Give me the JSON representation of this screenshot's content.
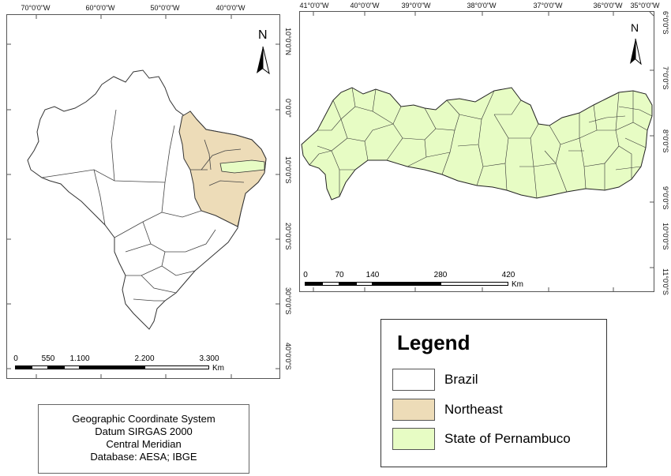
{
  "left_map": {
    "top_ticks": [
      "70°0'0\"W",
      "60°0'0\"W",
      "50°0'0\"W",
      "40°0'0\"W"
    ],
    "right_ticks": [
      "10°0'0\"N",
      "0°0'0\"",
      "10°0'0\"S",
      "20°0'0\"S",
      "30°0'0\"S",
      "40°0'0\"S"
    ],
    "scale_labels": [
      "0",
      "550",
      "1.100",
      "2.200",
      "3.300"
    ],
    "scale_unit": "Km",
    "north_label": "N"
  },
  "right_map": {
    "top_ticks": [
      "41°0'0\"W",
      "40°0'0\"W",
      "39°0'0\"W",
      "38°0'0\"W",
      "37°0'0\"W",
      "36°0'0\"W",
      "35°0'0\"W"
    ],
    "right_ticks": [
      "6°0'0\"S",
      "7°0'0\"S",
      "8°0'0\"S",
      "9°0'0\"S",
      "10°0'0\"S",
      "11°0'0\"S"
    ],
    "scale_labels": [
      "0",
      "70",
      "140",
      "280",
      "420"
    ],
    "scale_unit": "Km",
    "north_label": "N"
  },
  "legend": {
    "title": "Legend",
    "items": [
      {
        "label": "Brazil",
        "color": "#ffffff"
      },
      {
        "label": "Northeast",
        "color": "#eddcb8"
      },
      {
        "label": "State of Pernambuco",
        "color": "#e7fcc4"
      }
    ]
  },
  "info": {
    "lines": [
      "Geographic Coordinate System",
      "Datum SIRGAS 2000",
      "Central Meridian",
      "Database: AESA; IBGE"
    ]
  },
  "colors": {
    "northeast": "#eddcb8",
    "pernambuco": "#e7fcc4",
    "outline": "#333333"
  }
}
